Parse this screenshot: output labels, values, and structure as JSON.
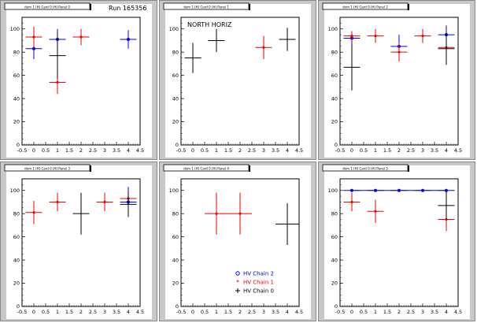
{
  "colors": {
    "blue": "#0000ee",
    "red": "#ee0000",
    "black": "#000000",
    "pad_bg": "#c8c8c8",
    "frame_bg": "#ffffff"
  },
  "chart_data": [
    {
      "type": "scatter",
      "title": "Run 165356",
      "pad_label": "dom 1 (H) Card 0 (H) Panel 0",
      "xlim": [
        -0.5,
        4.5
      ],
      "ylim": [
        0,
        110
      ],
      "xticks": [
        "-0.5",
        "0",
        "0.5",
        "1",
        "1.5",
        "2",
        "2.5",
        "3",
        "3.5",
        "4",
        "4.5"
      ],
      "yticks": [
        "0",
        "20",
        "40",
        "60",
        "80",
        "100"
      ],
      "series": [
        {
          "color": "blue",
          "marker": "circle",
          "points": [
            {
              "x": 0,
              "y": 83,
              "xerr": 0.35,
              "yerr": 9
            },
            {
              "x": 1,
              "y": 91,
              "xerr": 0.35,
              "yerr": 9
            },
            {
              "x": 4,
              "y": 91,
              "xerr": 0.35,
              "yerr": 8
            }
          ]
        },
        {
          "color": "red",
          "marker": "star",
          "points": [
            {
              "x": 0,
              "y": 93,
              "xerr": 0.35,
              "yerr": 9
            },
            {
              "x": 1,
              "y": 54,
              "xerr": 0.35,
              "yerr": 10
            },
            {
              "x": 2,
              "y": 93,
              "xerr": 0.35,
              "yerr": 7
            }
          ]
        },
        {
          "color": "black",
          "marker": "cross",
          "points": [
            {
              "x": 1,
              "y": 77,
              "xerr": 0.35,
              "yerr": 20
            }
          ]
        }
      ]
    },
    {
      "type": "scatter",
      "title": "NORTH HORIZ",
      "pad_label": "dom 1 (H) Card 0 (H) Panel 1",
      "xlim": [
        -0.5,
        4.5
      ],
      "ylim": [
        0,
        110
      ],
      "xticks": [
        "-0.5",
        "0",
        "0.5",
        "1",
        "1.5",
        "2",
        "2.5",
        "3",
        "3.5",
        "4",
        "4.5"
      ],
      "yticks": [
        "0",
        "20",
        "40",
        "60",
        "80",
        "100"
      ],
      "series": [
        {
          "color": "black",
          "marker": "cross",
          "points": [
            {
              "x": 0,
              "y": 75,
              "xerr": 0.35,
              "yerr": 13
            },
            {
              "x": 1,
              "y": 90,
              "xerr": 0.35,
              "yerr": 10
            },
            {
              "x": 4,
              "y": 91,
              "xerr": 0.35,
              "yerr": 10
            }
          ]
        },
        {
          "color": "red",
          "marker": "star",
          "points": [
            {
              "x": 3,
              "y": 84,
              "xerr": 0.35,
              "yerr": 10
            }
          ]
        }
      ]
    },
    {
      "type": "scatter",
      "title": "",
      "pad_label": "dom 1 (H) Card 0 (H) Panel 2",
      "xlim": [
        -0.5,
        4.5
      ],
      "ylim": [
        0,
        110
      ],
      "xticks": [
        "-0.5",
        "0",
        "0.5",
        "1",
        "1.5",
        "2",
        "2.5",
        "3",
        "3.5",
        "4",
        "4.5"
      ],
      "yticks": [
        "0",
        "20",
        "40",
        "60",
        "80",
        "100"
      ],
      "series": [
        {
          "color": "blue",
          "marker": "circle",
          "points": [
            {
              "x": 0,
              "y": 92,
              "xerr": 0.35,
              "yerr": 6
            },
            {
              "x": 2,
              "y": 85,
              "xerr": 0.35,
              "yerr": 10
            },
            {
              "x": 4,
              "y": 95,
              "xerr": 0.35,
              "yerr": 8
            }
          ]
        },
        {
          "color": "red",
          "marker": "star",
          "points": [
            {
              "x": 0,
              "y": 94,
              "xerr": 0.35,
              "yerr": 4
            },
            {
              "x": 1,
              "y": 94,
              "xerr": 0.35,
              "yerr": 6
            },
            {
              "x": 2,
              "y": 80,
              "xerr": 0.35,
              "yerr": 8
            },
            {
              "x": 3,
              "y": 94,
              "xerr": 0.35,
              "yerr": 6
            },
            {
              "x": 4,
              "y": 84,
              "xerr": 0.35,
              "yerr": 12
            }
          ]
        },
        {
          "color": "black",
          "marker": "cross",
          "points": [
            {
              "x": 0,
              "y": 67,
              "xerr": 0.35,
              "yerr": 20
            },
            {
              "x": 4,
              "y": 83,
              "xerr": 0.35,
              "yerr": 14
            }
          ]
        }
      ]
    },
    {
      "type": "scatter",
      "title": "",
      "pad_label": "dom 1 (H) Card 0 (H) Panel 3",
      "xlim": [
        -0.5,
        4.5
      ],
      "ylim": [
        0,
        110
      ],
      "xticks": [
        "-0.5",
        "0",
        "0.5",
        "1",
        "1.5",
        "2",
        "2.5",
        "3",
        "3.5",
        "4",
        "4.5"
      ],
      "yticks": [
        "0",
        "20",
        "40",
        "60",
        "80",
        "100"
      ],
      "series": [
        {
          "color": "red",
          "marker": "star",
          "points": [
            {
              "x": 0,
              "y": 81,
              "xerr": 0.35,
              "yerr": 10
            },
            {
              "x": 1,
              "y": 90,
              "xerr": 0.35,
              "yerr": 8
            },
            {
              "x": 3,
              "y": 90,
              "xerr": 0.35,
              "yerr": 8
            },
            {
              "x": 4,
              "y": 93,
              "xerr": 0.35,
              "yerr": 6
            }
          ]
        },
        {
          "color": "blue",
          "marker": "circle",
          "points": [
            {
              "x": 4,
              "y": 90,
              "xerr": 0.35,
              "yerr": 13
            }
          ]
        },
        {
          "color": "black",
          "marker": "cross",
          "points": [
            {
              "x": 2,
              "y": 80,
              "xerr": 0.35,
              "yerr": 18
            },
            {
              "x": 4,
              "y": 88,
              "xerr": 0.35,
              "yerr": 10
            }
          ]
        }
      ]
    },
    {
      "type": "scatter",
      "title": "",
      "pad_label": "dom 1 (H) Card 0 (H) Panel 4",
      "xlim": [
        -0.5,
        4.5
      ],
      "ylim": [
        0,
        110
      ],
      "xticks": [
        "-0.5",
        "0",
        "0.5",
        "1",
        "1.5",
        "2",
        "2.5",
        "3",
        "3.5",
        "4",
        "4.5"
      ],
      "yticks": [
        "0",
        "20",
        "40",
        "60",
        "80",
        "100"
      ],
      "legend": {
        "position": "bottom-right",
        "entries": [
          {
            "label": "HV Chain 2",
            "color": "blue",
            "marker": "circle"
          },
          {
            "label": "HV Chain 1",
            "color": "red",
            "marker": "star"
          },
          {
            "label": "HV Chain 0",
            "color": "black",
            "marker": "cross"
          }
        ]
      },
      "series": [
        {
          "color": "red",
          "marker": "star",
          "points": [
            {
              "x": 1,
              "y": 80,
              "xerr": 0.5,
              "yerr": 18
            },
            {
              "x": 2,
              "y": 80,
              "xerr": 0.5,
              "yerr": 18
            }
          ]
        },
        {
          "color": "black",
          "marker": "cross",
          "points": [
            {
              "x": 4,
              "y": 71,
              "xerr": 0.5,
              "yerr": 18
            }
          ]
        }
      ]
    },
    {
      "type": "scatter",
      "title": "",
      "pad_label": "dom 1 (H) Card 0 (H) Panel 5",
      "xlim": [
        -0.5,
        4.5
      ],
      "ylim": [
        0,
        110
      ],
      "xticks": [
        "-0.5",
        "0",
        "0.5",
        "1",
        "1.5",
        "2",
        "2.5",
        "3",
        "3.5",
        "4",
        "4.5"
      ],
      "yticks": [
        "0",
        "20",
        "40",
        "60",
        "80",
        "100"
      ],
      "series": [
        {
          "color": "blue",
          "marker": "circle",
          "connected": true,
          "points": [
            {
              "x": 0,
              "y": 100,
              "xerr": 0.35,
              "yerr": 0
            },
            {
              "x": 1,
              "y": 100,
              "xerr": 0.35,
              "yerr": 0
            },
            {
              "x": 2,
              "y": 100,
              "xerr": 0.35,
              "yerr": 0
            },
            {
              "x": 3,
              "y": 100,
              "xerr": 0.35,
              "yerr": 0
            },
            {
              "x": 4,
              "y": 100,
              "xerr": 0.35,
              "yerr": 0
            }
          ]
        },
        {
          "color": "red",
          "marker": "star",
          "points": [
            {
              "x": 0,
              "y": 90,
              "xerr": 0.35,
              "yerr": 8
            },
            {
              "x": 1,
              "y": 82,
              "xerr": 0.35,
              "yerr": 10
            },
            {
              "x": 4,
              "y": 75,
              "xerr": 0.35,
              "yerr": 10
            }
          ]
        },
        {
          "color": "black",
          "marker": "cross",
          "points": [
            {
              "x": 4,
              "y": 87,
              "xerr": 0.35,
              "yerr": 12
            }
          ]
        }
      ]
    }
  ]
}
